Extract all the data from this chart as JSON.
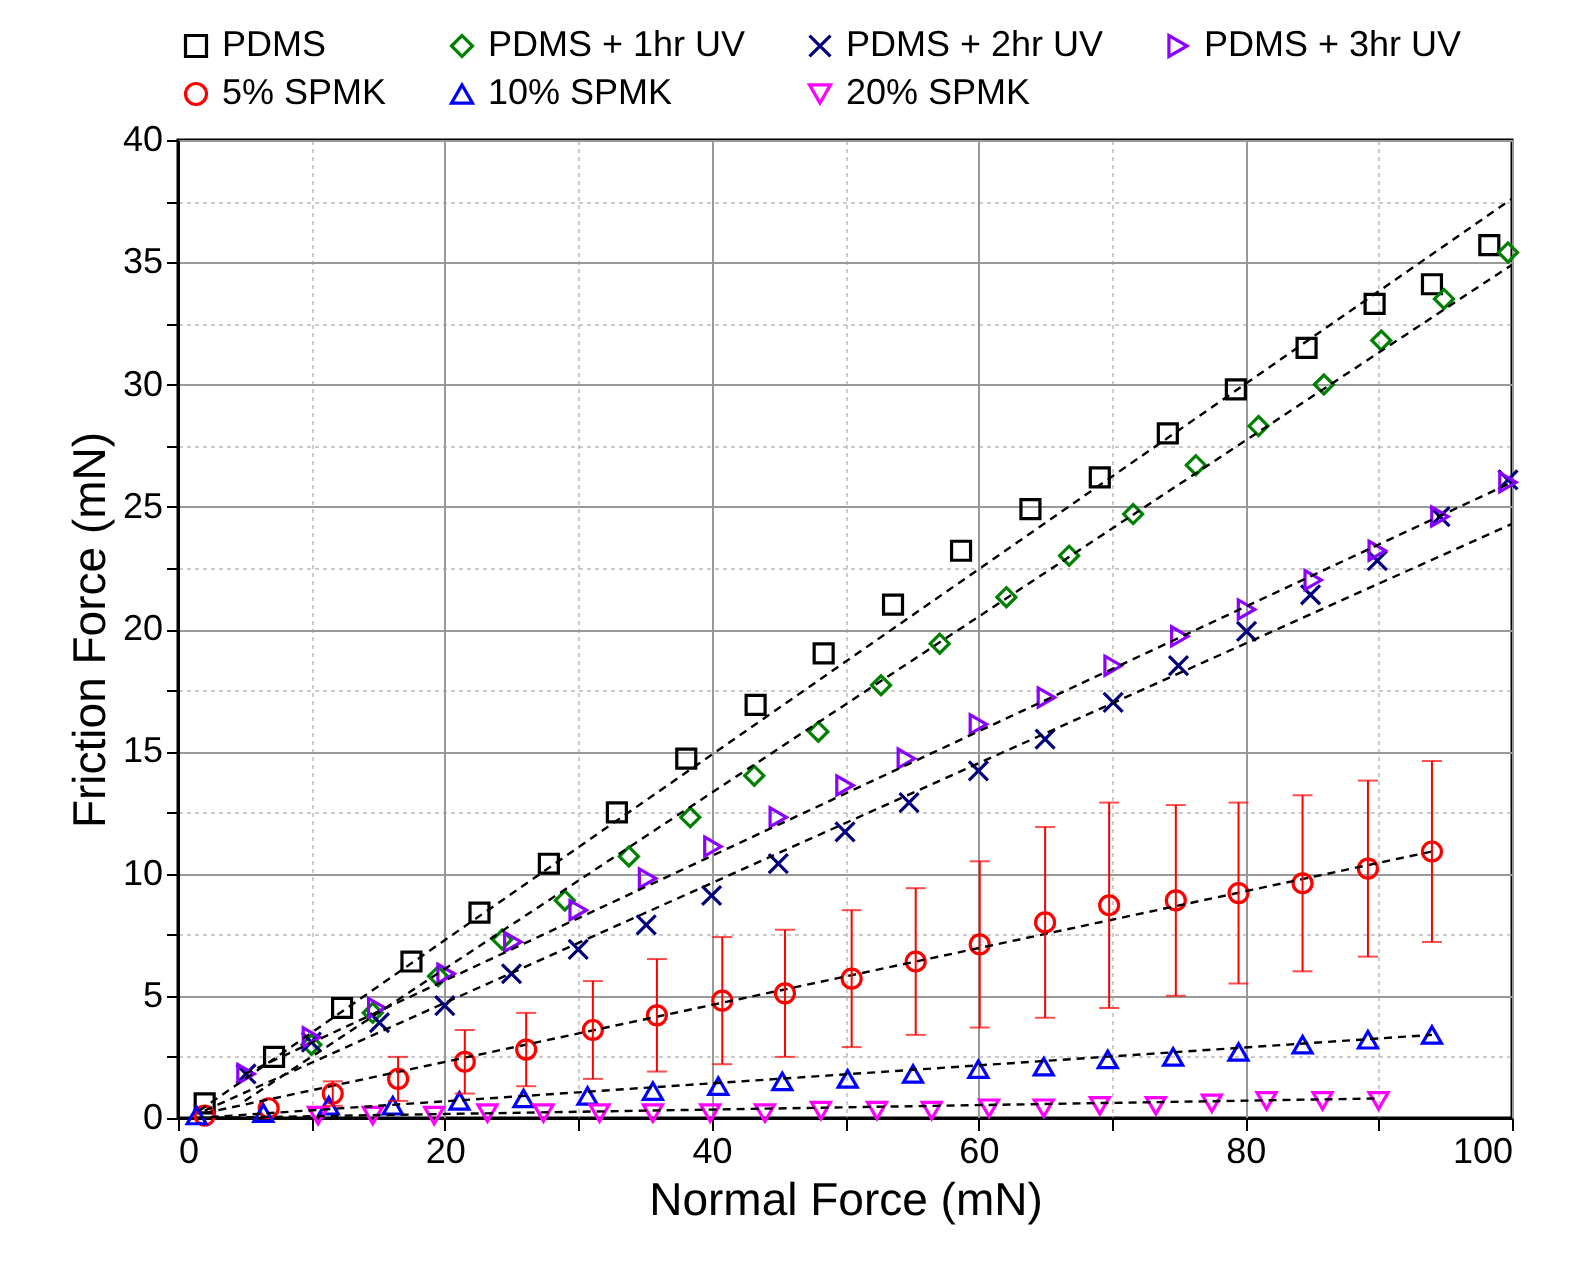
{
  "chart_data": {
    "type": "scatter",
    "xlabel": "Normal Force (mN)",
    "ylabel": "Friction Force (mN)",
    "xlim": [
      0,
      100
    ],
    "ylim": [
      0,
      40
    ],
    "xticks": [
      0,
      {
        "value": 10,
        "label": null
      },
      20,
      {
        "value": 30,
        "label": null
      },
      40,
      {
        "value": 50,
        "label": null
      },
      60,
      {
        "value": 70,
        "label": null
      },
      80,
      {
        "value": 90,
        "label": null
      },
      100
    ],
    "yticks": [
      0,
      {
        "value": 2.5,
        "label": null
      },
      5,
      {
        "value": 7.5,
        "label": null
      },
      10,
      {
        "value": 12.5,
        "label": null
      },
      15,
      {
        "value": 17.5,
        "label": null
      },
      20,
      {
        "value": 22.5,
        "label": null
      },
      25,
      {
        "value": 27.5,
        "label": null
      },
      30,
      {
        "value": 32.5,
        "label": null
      },
      35,
      {
        "value": 37.5,
        "label": null
      },
      40
    ],
    "grid": true,
    "legend": "top",
    "series": [
      {
        "name": "PDMS",
        "color": "#000000",
        "marker": "square",
        "x": [
          2.0,
          7.2,
          12.3,
          17.5,
          22.6,
          27.8,
          32.9,
          38.1,
          43.3,
          48.4,
          53.6,
          58.7,
          63.9,
          69.1,
          74.2,
          79.3,
          84.6,
          89.7,
          94.0,
          98.3
        ],
        "values": [
          0.6,
          2.5,
          4.5,
          6.4,
          8.4,
          10.4,
          12.5,
          14.7,
          16.9,
          19.0,
          21.0,
          23.2,
          24.9,
          26.2,
          28.0,
          29.8,
          31.5,
          33.3,
          34.1,
          35.7
        ]
      },
      {
        "name": "PDMS + 1hr UV",
        "color": "#008000",
        "marker": "diamond",
        "x": [
          10.0,
          14.6,
          19.5,
          24.3,
          29.0,
          33.8,
          38.4,
          43.2,
          48.0,
          52.7,
          57.1,
          62.1,
          66.8,
          71.6,
          76.3,
          81.0,
          85.9,
          90.2,
          94.9,
          99.7
        ],
        "values": [
          3.0,
          4.3,
          5.8,
          7.3,
          8.9,
          10.7,
          12.3,
          14.0,
          15.8,
          17.7,
          19.4,
          21.3,
          23.0,
          24.7,
          26.7,
          28.3,
          30.0,
          31.8,
          33.5,
          35.4
        ]
      },
      {
        "name": "PDMS + 2hr UV",
        "color": "#00007f",
        "marker": "cross",
        "x": [
          5.1,
          10.0,
          15.1,
          20.0,
          25.0,
          30.0,
          35.1,
          40.0,
          45.0,
          50.0,
          54.8,
          60.0,
          65.0,
          70.1,
          75.0,
          80.1,
          84.9,
          89.9,
          94.6,
          99.7
        ],
        "values": [
          1.8,
          3.1,
          3.9,
          4.6,
          5.9,
          6.9,
          7.9,
          9.1,
          10.4,
          11.7,
          12.9,
          14.2,
          15.5,
          17.0,
          18.5,
          19.9,
          21.4,
          22.8,
          24.6,
          26.1
        ]
      },
      {
        "name": "PDMS + 3hr UV",
        "color": "#8b00ff",
        "marker": "triangle-right",
        "x": [
          5.1,
          10.0,
          14.9,
          20.1,
          25.1,
          30.0,
          35.2,
          40.1,
          45.0,
          50.0,
          54.6,
          60.0,
          65.1,
          70.1,
          75.1,
          80.1,
          85.1,
          89.9,
          94.6,
          99.7
        ],
        "values": [
          1.8,
          3.3,
          4.5,
          5.9,
          7.2,
          8.5,
          9.8,
          11.1,
          12.3,
          13.6,
          14.7,
          16.1,
          17.2,
          18.5,
          19.7,
          20.8,
          22.0,
          23.2,
          24.6,
          26.0
        ]
      },
      {
        "name": "5% SPMK",
        "color": "#ff0000",
        "marker": "circle",
        "x": [
          2.0,
          6.8,
          11.6,
          16.5,
          21.5,
          26.1,
          31.1,
          35.9,
          40.8,
          45.5,
          50.5,
          55.3,
          60.1,
          65.0,
          69.8,
          74.8,
          79.5,
          84.3,
          89.2,
          94.0
        ],
        "values": [
          0.1,
          0.4,
          1.0,
          1.6,
          2.3,
          2.8,
          3.6,
          4.2,
          4.8,
          5.1,
          5.7,
          6.4,
          7.1,
          8.0,
          8.7,
          8.9,
          9.2,
          9.6,
          10.2,
          10.9
        ],
        "errors": [
          null,
          null,
          0.5,
          0.9,
          1.3,
          1.5,
          2.0,
          2.3,
          2.6,
          2.6,
          2.8,
          3.0,
          3.4,
          3.9,
          4.2,
          3.9,
          3.7,
          3.6,
          3.6,
          3.7
        ]
      },
      {
        "name": "10% SPMK",
        "color": "#0000ff",
        "marker": "triangle",
        "x": [
          1.4,
          6.4,
          11.3,
          16.1,
          21.1,
          25.9,
          30.7,
          35.6,
          40.5,
          45.3,
          50.2,
          55.1,
          60.0,
          64.9,
          69.7,
          74.6,
          79.5,
          84.3,
          89.2,
          94.0
        ],
        "values": [
          0.1,
          0.2,
          0.5,
          0.5,
          0.7,
          0.8,
          0.9,
          1.1,
          1.3,
          1.5,
          1.6,
          1.8,
          2.0,
          2.1,
          2.4,
          2.5,
          2.7,
          3.0,
          3.2,
          3.4
        ]
      },
      {
        "name": "20% SPMK",
        "color": "#ff00ff",
        "marker": "triangle-down",
        "x": [
          10.5,
          14.6,
          19.2,
          23.2,
          27.4,
          31.6,
          35.6,
          39.9,
          44.0,
          48.2,
          52.4,
          56.5,
          60.8,
          64.9,
          69.1,
          73.3,
          77.5,
          81.6,
          85.8,
          90.0
        ],
        "values": [
          0.1,
          0.1,
          0.1,
          0.2,
          0.2,
          0.2,
          0.2,
          0.2,
          0.2,
          0.3,
          0.3,
          0.3,
          0.4,
          0.4,
          0.5,
          0.5,
          0.6,
          0.7,
          0.7,
          0.7
        ]
      },
      {
        "type": "line",
        "color": "#000000",
        "line_style": "dashed",
        "x": [
          1.6,
          100
        ],
        "values": [
          0.3,
          37.6
        ]
      },
      {
        "type": "line",
        "color": "#000000",
        "line_style": "dashed",
        "x": [
          5,
          100
        ],
        "values": [
          0.7,
          34.9
        ]
      },
      {
        "type": "line",
        "color": "#000000",
        "line_style": "dashed",
        "x": [
          5,
          100
        ],
        "values": [
          1.8,
          26.0
        ]
      },
      {
        "type": "line",
        "color": "#000000",
        "line_style": "dashed",
        "x": [
          2,
          100
        ],
        "values": [
          0.3,
          24.3
        ]
      },
      {
        "type": "line",
        "color": "#000000",
        "line_style": "dashed",
        "x": [
          2,
          94
        ],
        "values": [
          0.2,
          10.9
        ]
      },
      {
        "type": "line",
        "color": "#000000",
        "line_style": "dashed",
        "x": [
          1.4,
          94
        ],
        "values": [
          0.0,
          3.4
        ]
      },
      {
        "type": "line",
        "color": "#000000",
        "line_style": "dashed",
        "x": [
          2,
          90
        ],
        "values": [
          0.0,
          0.8
        ]
      }
    ]
  }
}
